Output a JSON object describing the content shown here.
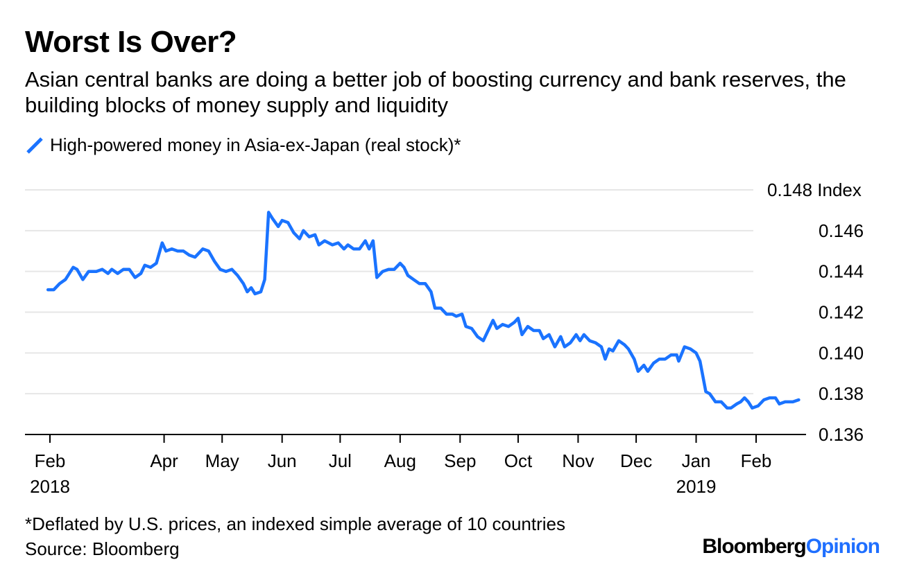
{
  "title": "Worst Is Over?",
  "subtitle": "Asian central banks are doing a better job of boosting currency and bank reserves, the building blocks of money supply and liquidity",
  "footnote": "*Deflated by U.S. prices, an indexed simple average of 10 countries",
  "source": "Source: Bloomberg",
  "brand": {
    "part1": "Bloomberg",
    "part2": "Opinion"
  },
  "colors": {
    "line": "#1a73ff",
    "grid": "#e6e6e6",
    "axis": "#000000",
    "brand_accent": "#1f6fff"
  },
  "chart_data": {
    "type": "line",
    "title": "Worst Is Over?",
    "ylabel_unit": "Index",
    "ylim": [
      0.136,
      0.148
    ],
    "yticks": [
      0.136,
      0.138,
      0.14,
      0.142,
      0.144,
      0.146,
      0.148
    ],
    "ytick_labels": [
      "0.136",
      "0.138",
      "0.140",
      "0.142",
      "0.144",
      "0.146",
      "0.148"
    ],
    "xlim": [
      "2018-02-01",
      "2019-02-28"
    ],
    "xticks": [
      {
        "date": "2018-02-01",
        "label": "Feb",
        "year": "2018"
      },
      {
        "date": "2018-04-01",
        "label": "Apr",
        "year": ""
      },
      {
        "date": "2018-05-01",
        "label": "May",
        "year": ""
      },
      {
        "date": "2018-06-01",
        "label": "Jun",
        "year": ""
      },
      {
        "date": "2018-07-01",
        "label": "Jul",
        "year": ""
      },
      {
        "date": "2018-08-01",
        "label": "Aug",
        "year": ""
      },
      {
        "date": "2018-09-01",
        "label": "Sep",
        "year": ""
      },
      {
        "date": "2018-10-01",
        "label": "Oct",
        "year": ""
      },
      {
        "date": "2018-11-01",
        "label": "Nov",
        "year": ""
      },
      {
        "date": "2018-12-01",
        "label": "Dec",
        "year": ""
      },
      {
        "date": "2019-01-01",
        "label": "Jan",
        "year": "2019"
      },
      {
        "date": "2019-02-01",
        "label": "Feb",
        "year": ""
      }
    ],
    "grid": true,
    "legend_position": "top-left",
    "series": [
      {
        "name": "High-powered money in Asia-ex-Japan (real stock)*",
        "points": [
          [
            "2018-01-31",
            0.1431
          ],
          [
            "2018-02-03",
            0.1431
          ],
          [
            "2018-02-06",
            0.1434
          ],
          [
            "2018-02-09",
            0.1436
          ],
          [
            "2018-02-13",
            0.1442
          ],
          [
            "2018-02-15",
            0.1441
          ],
          [
            "2018-02-18",
            0.1436
          ],
          [
            "2018-02-21",
            0.144
          ],
          [
            "2018-02-25",
            0.144
          ],
          [
            "2018-02-28",
            0.1441
          ],
          [
            "2018-03-03",
            0.1439
          ],
          [
            "2018-03-05",
            0.1441
          ],
          [
            "2018-03-08",
            0.1439
          ],
          [
            "2018-03-11",
            0.1441
          ],
          [
            "2018-03-14",
            0.1441
          ],
          [
            "2018-03-17",
            0.1437
          ],
          [
            "2018-03-20",
            0.1439
          ],
          [
            "2018-03-22",
            0.1443
          ],
          [
            "2018-03-25",
            0.1442
          ],
          [
            "2018-03-28",
            0.1444
          ],
          [
            "2018-03-31",
            0.1454
          ],
          [
            "2018-04-02",
            0.145
          ],
          [
            "2018-04-05",
            0.1451
          ],
          [
            "2018-04-08",
            0.145
          ],
          [
            "2018-04-11",
            0.145
          ],
          [
            "2018-04-14",
            0.1448
          ],
          [
            "2018-04-17",
            0.1447
          ],
          [
            "2018-04-21",
            0.1451
          ],
          [
            "2018-04-24",
            0.145
          ],
          [
            "2018-04-27",
            0.1445
          ],
          [
            "2018-04-30",
            0.1441
          ],
          [
            "2018-05-03",
            0.144
          ],
          [
            "2018-05-06",
            0.1441
          ],
          [
            "2018-05-09",
            0.1438
          ],
          [
            "2018-05-12",
            0.1434
          ],
          [
            "2018-05-14",
            0.143
          ],
          [
            "2018-05-16",
            0.1432
          ],
          [
            "2018-05-18",
            0.1429
          ],
          [
            "2018-05-21",
            0.143
          ],
          [
            "2018-05-23",
            0.1436
          ],
          [
            "2018-05-25",
            0.1469
          ],
          [
            "2018-05-27",
            0.1466
          ],
          [
            "2018-05-30",
            0.1462
          ],
          [
            "2018-06-01",
            0.1465
          ],
          [
            "2018-06-04",
            0.1464
          ],
          [
            "2018-06-07",
            0.1459
          ],
          [
            "2018-06-10",
            0.1456
          ],
          [
            "2018-06-12",
            0.146
          ],
          [
            "2018-06-15",
            0.1457
          ],
          [
            "2018-06-18",
            0.1458
          ],
          [
            "2018-06-20",
            0.1453
          ],
          [
            "2018-06-23",
            0.1455
          ],
          [
            "2018-06-27",
            0.1453
          ],
          [
            "2018-06-30",
            0.1454
          ],
          [
            "2018-07-03",
            0.1451
          ],
          [
            "2018-07-05",
            0.1453
          ],
          [
            "2018-07-08",
            0.1451
          ],
          [
            "2018-07-11",
            0.1451
          ],
          [
            "2018-07-14",
            0.1455
          ],
          [
            "2018-07-16",
            0.1451
          ],
          [
            "2018-07-18",
            0.1455
          ],
          [
            "2018-07-20",
            0.1437
          ],
          [
            "2018-07-23",
            0.144
          ],
          [
            "2018-07-26",
            0.1441
          ],
          [
            "2018-07-29",
            0.1441
          ],
          [
            "2018-08-01",
            0.1444
          ],
          [
            "2018-08-03",
            0.1442
          ],
          [
            "2018-08-05",
            0.1438
          ],
          [
            "2018-08-08",
            0.1436
          ],
          [
            "2018-08-11",
            0.1434
          ],
          [
            "2018-08-14",
            0.1434
          ],
          [
            "2018-08-17",
            0.143
          ],
          [
            "2018-08-19",
            0.1422
          ],
          [
            "2018-08-22",
            0.1422
          ],
          [
            "2018-08-25",
            0.1419
          ],
          [
            "2018-08-28",
            0.1419
          ],
          [
            "2018-08-30",
            0.1418
          ],
          [
            "2018-09-02",
            0.1419
          ],
          [
            "2018-09-04",
            0.1413
          ],
          [
            "2018-09-07",
            0.1412
          ],
          [
            "2018-09-10",
            0.1408
          ],
          [
            "2018-09-13",
            0.1406
          ],
          [
            "2018-09-15",
            0.141
          ],
          [
            "2018-09-18",
            0.1416
          ],
          [
            "2018-09-20",
            0.1412
          ],
          [
            "2018-09-23",
            0.1414
          ],
          [
            "2018-09-26",
            0.1413
          ],
          [
            "2018-09-29",
            0.1415
          ],
          [
            "2018-10-01",
            0.1417
          ],
          [
            "2018-10-03",
            0.1409
          ],
          [
            "2018-10-06",
            0.1413
          ],
          [
            "2018-10-09",
            0.1411
          ],
          [
            "2018-10-12",
            0.1411
          ],
          [
            "2018-10-14",
            0.1407
          ],
          [
            "2018-10-17",
            0.1409
          ],
          [
            "2018-10-20",
            0.1403
          ],
          [
            "2018-10-23",
            0.1408
          ],
          [
            "2018-10-25",
            0.1403
          ],
          [
            "2018-10-28",
            0.1405
          ],
          [
            "2018-10-31",
            0.1409
          ],
          [
            "2018-11-02",
            0.1406
          ],
          [
            "2018-11-04",
            0.1409
          ],
          [
            "2018-11-07",
            0.1406
          ],
          [
            "2018-11-10",
            0.1405
          ],
          [
            "2018-11-13",
            0.1403
          ],
          [
            "2018-11-15",
            0.1397
          ],
          [
            "2018-11-17",
            0.1402
          ],
          [
            "2018-11-19",
            0.1401
          ],
          [
            "2018-11-22",
            0.1406
          ],
          [
            "2018-11-25",
            0.1404
          ],
          [
            "2018-11-27",
            0.1402
          ],
          [
            "2018-11-30",
            0.1397
          ],
          [
            "2018-12-02",
            0.1391
          ],
          [
            "2018-12-05",
            0.1394
          ],
          [
            "2018-12-07",
            0.1391
          ],
          [
            "2018-12-10",
            0.1395
          ],
          [
            "2018-12-13",
            0.1397
          ],
          [
            "2018-12-16",
            0.1397
          ],
          [
            "2018-12-19",
            0.1399
          ],
          [
            "2018-12-22",
            0.1399
          ],
          [
            "2018-12-23",
            0.1396
          ],
          [
            "2018-12-26",
            0.1403
          ],
          [
            "2018-12-29",
            0.1402
          ],
          [
            "2019-01-01",
            0.14
          ],
          [
            "2019-01-03",
            0.1396
          ],
          [
            "2019-01-06",
            0.1381
          ],
          [
            "2019-01-08",
            0.138
          ],
          [
            "2019-01-11",
            0.1376
          ],
          [
            "2019-01-14",
            0.1376
          ],
          [
            "2019-01-17",
            0.1373
          ],
          [
            "2019-01-19",
            0.1373
          ],
          [
            "2019-01-22",
            0.1375
          ],
          [
            "2019-01-24",
            0.1376
          ],
          [
            "2019-01-26",
            0.1378
          ],
          [
            "2019-01-28",
            0.1376
          ],
          [
            "2019-01-30",
            0.1373
          ],
          [
            "2019-02-02",
            0.1374
          ],
          [
            "2019-02-05",
            0.1377
          ],
          [
            "2019-02-08",
            0.1378
          ],
          [
            "2019-02-11",
            0.1378
          ],
          [
            "2019-02-13",
            0.1375
          ],
          [
            "2019-02-16",
            0.1376
          ],
          [
            "2019-02-20",
            0.1376
          ],
          [
            "2019-02-23",
            0.1377
          ]
        ]
      }
    ]
  }
}
